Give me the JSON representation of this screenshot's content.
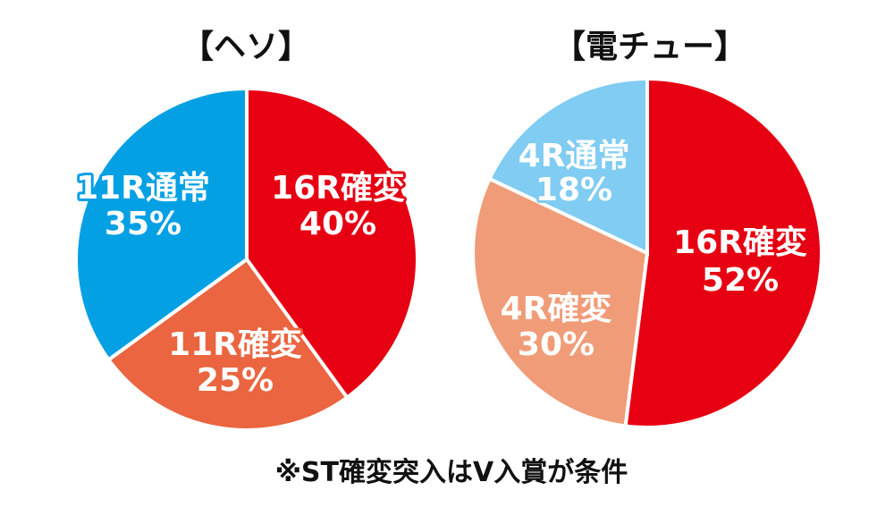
{
  "chart_data": [
    {
      "type": "pie",
      "title": "【ヘソ】",
      "start": "12 o'clock, clockwise",
      "slices": [
        {
          "name": "16R確変",
          "value": 40,
          "label": "40%",
          "color": "#e60012"
        },
        {
          "name": "11R確変",
          "value": 25,
          "label": "25%",
          "color": "#ea6540"
        },
        {
          "name": "11R通常",
          "value": 35,
          "label": "35%",
          "color": "#03a0e4"
        }
      ]
    },
    {
      "type": "pie",
      "title": "【電チュー】",
      "start": "12 o'clock, clockwise",
      "slices": [
        {
          "name": "16R確変",
          "value": 52,
          "label": "52%",
          "color": "#e60012"
        },
        {
          "name": "4R確変",
          "value": 30,
          "label": "30%",
          "color": "#f19c78"
        },
        {
          "name": "4R通常",
          "value": 18,
          "label": "18%",
          "color": "#80ccf2"
        }
      ]
    }
  ],
  "footnote": "※ST確変突入はV入賞が条件"
}
